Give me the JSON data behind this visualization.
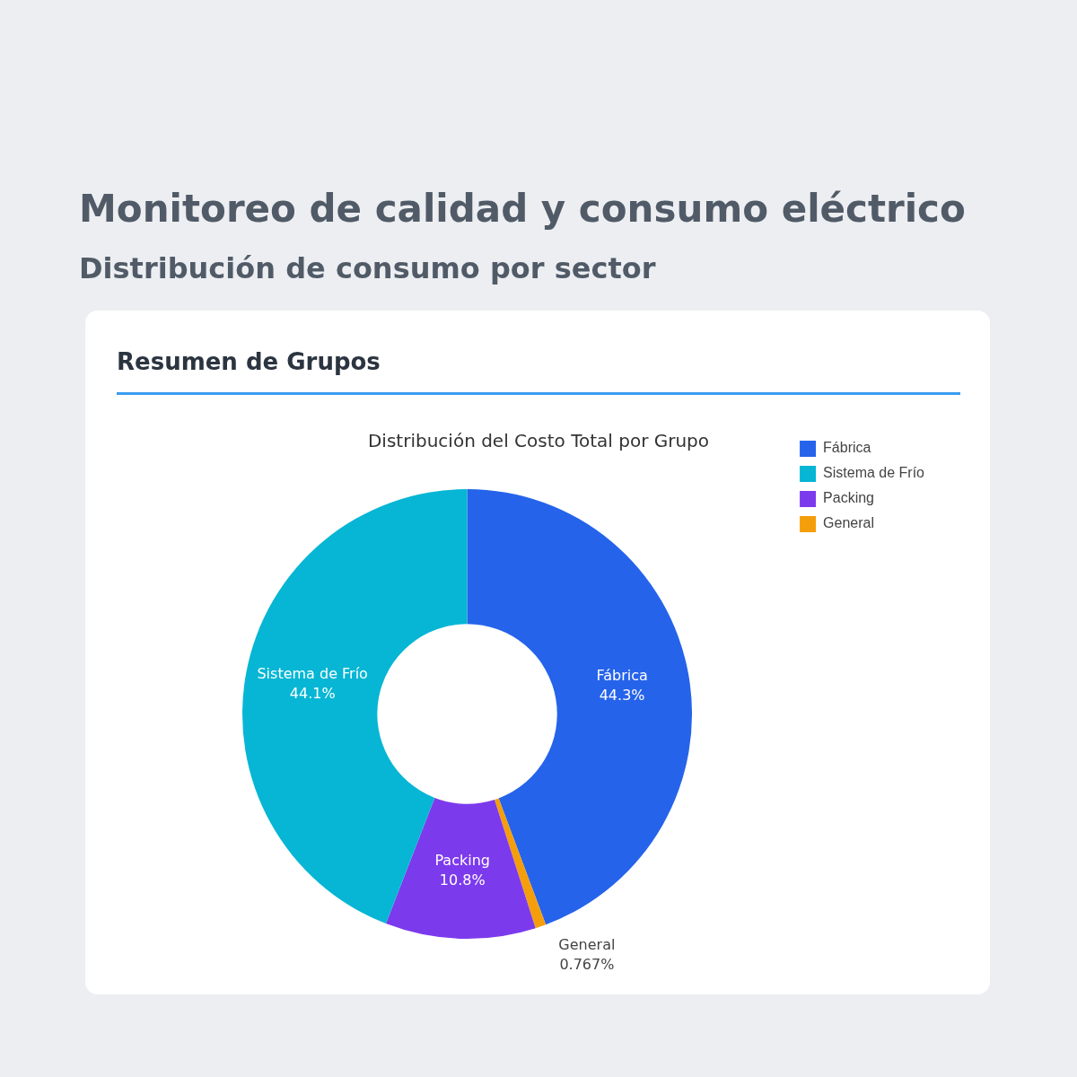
{
  "chart_data": {
    "type": "donut",
    "title": "Monitoreo de calidad y consumo eléctrico",
    "subtitle": "Distribución de consumo por sector",
    "annotations": [
      "Resumen de Grupos",
      "Distribución del Costo Total por Grupo"
    ],
    "categories": [
      "Fábrica",
      "Sistema de Frío",
      "Packing",
      "General"
    ],
    "values": [
      44.3,
      44.1,
      10.8,
      0.767
    ],
    "colors": [
      "#2563eb",
      "#06b6d4",
      "#7c3aed",
      "#f59e0b"
    ],
    "value_labels": [
      "44.3%",
      "44.1%",
      "10.8%",
      "0.767%"
    ],
    "legend": "top right"
  }
}
